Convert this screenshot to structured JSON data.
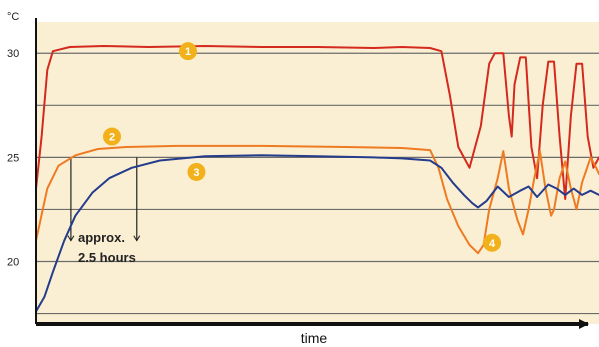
{
  "chart_data": {
    "type": "line",
    "unit": "°C",
    "xlabel": "time",
    "ylabel": "",
    "ylim": [
      17,
      31.5
    ],
    "xlim": [
      0,
      100
    ],
    "yticks": [
      20,
      25,
      30
    ],
    "grid": true,
    "background": "#fbefd3",
    "series": [
      {
        "color": "#d42a1e",
        "marker": "1",
        "points": [
          [
            0,
            23.5
          ],
          [
            1,
            26
          ],
          [
            2,
            29.2
          ],
          [
            3,
            30.1
          ],
          [
            6,
            30.3
          ],
          [
            12,
            30.35
          ],
          [
            20,
            30.3
          ],
          [
            30,
            30.35
          ],
          [
            40,
            30.3
          ],
          [
            50,
            30.3
          ],
          [
            60,
            30.25
          ],
          [
            65,
            30.3
          ],
          [
            70,
            30.25
          ],
          [
            72,
            30.1
          ],
          [
            73.5,
            28
          ],
          [
            75,
            25.5
          ],
          [
            77,
            24.5
          ],
          [
            79,
            26.5
          ],
          [
            80.5,
            29.5
          ],
          [
            81.5,
            30
          ],
          [
            83,
            30
          ],
          [
            84,
            27
          ],
          [
            84.5,
            26
          ],
          [
            85,
            28.5
          ],
          [
            86,
            29.8
          ],
          [
            87,
            29.8
          ],
          [
            88,
            25.5
          ],
          [
            89,
            24
          ],
          [
            90,
            27.5
          ],
          [
            91,
            29.6
          ],
          [
            92,
            29.6
          ],
          [
            93,
            26
          ],
          [
            94,
            23
          ],
          [
            95,
            27
          ],
          [
            96,
            29.5
          ],
          [
            97,
            29.5
          ],
          [
            98,
            26
          ],
          [
            99,
            24.5
          ],
          [
            100,
            25
          ]
        ]
      },
      {
        "color": "#ee7b22",
        "marker": "2",
        "points": [
          [
            0,
            21
          ],
          [
            2,
            23.5
          ],
          [
            4,
            24.6
          ],
          [
            7,
            25.1
          ],
          [
            11,
            25.4
          ],
          [
            16,
            25.5
          ],
          [
            25,
            25.55
          ],
          [
            40,
            25.55
          ],
          [
            55,
            25.5
          ],
          [
            65,
            25.45
          ],
          [
            70,
            25.35
          ],
          [
            71.5,
            24.5
          ],
          [
            73,
            23
          ],
          [
            75,
            21.7
          ],
          [
            77,
            20.8
          ],
          [
            78.5,
            20.4
          ],
          [
            79.5,
            20.8
          ],
          [
            80.5,
            22.5
          ],
          [
            82,
            24
          ],
          [
            83,
            25.3
          ],
          [
            84,
            23.5
          ],
          [
            85.5,
            22
          ],
          [
            86.5,
            21.3
          ],
          [
            87.5,
            22.5
          ],
          [
            88.5,
            24
          ],
          [
            89.5,
            25.3
          ],
          [
            90.5,
            23.5
          ],
          [
            91.5,
            22.2
          ],
          [
            92,
            22.5
          ],
          [
            93,
            24
          ],
          [
            94,
            24.8
          ],
          [
            95,
            23.5
          ],
          [
            96,
            22.5
          ],
          [
            97,
            23.8
          ],
          [
            98.5,
            25
          ],
          [
            99.5,
            24.5
          ],
          [
            100,
            24.2
          ]
        ]
      },
      {
        "color": "#243c8c",
        "marker": "3",
        "points": [
          [
            0,
            17.6
          ],
          [
            1.5,
            18.3
          ],
          [
            3,
            19.5
          ],
          [
            5,
            21
          ],
          [
            7,
            22.2
          ],
          [
            10,
            23.3
          ],
          [
            13,
            24
          ],
          [
            17,
            24.5
          ],
          [
            22,
            24.85
          ],
          [
            30,
            25.05
          ],
          [
            40,
            25.1
          ],
          [
            50,
            25.05
          ],
          [
            60,
            25
          ],
          [
            65,
            24.95
          ],
          [
            70,
            24.85
          ],
          [
            72,
            24.5
          ],
          [
            74,
            23.8
          ],
          [
            76,
            23.2
          ],
          [
            77.5,
            22.8
          ],
          [
            78.5,
            22.6
          ],
          [
            80,
            22.9
          ],
          [
            82,
            23.6
          ],
          [
            84,
            23.1
          ],
          [
            86,
            23.4
          ],
          [
            87.5,
            23.6
          ],
          [
            89,
            23.1
          ],
          [
            91,
            23.7
          ],
          [
            92.5,
            23.5
          ],
          [
            94,
            23.2
          ],
          [
            95.5,
            23.5
          ],
          [
            97,
            23.2
          ],
          [
            98.5,
            23.4
          ],
          [
            100,
            23.2
          ]
        ]
      }
    ],
    "markers": [
      {
        "label": "1",
        "color": "#f2b11a",
        "x": 27,
        "y": 30.1
      },
      {
        "label": "2",
        "color": "#f2b11a",
        "x": 13.5,
        "y": 26.0
      },
      {
        "label": "3",
        "color": "#f2b11a",
        "x": 28.5,
        "y": 24.3
      },
      {
        "label": "4",
        "color": "#f2b11a",
        "x": 81,
        "y": 20.9
      }
    ],
    "annotation": {
      "lines": [
        "approx.",
        "2.5 hours"
      ],
      "bracket_x": [
        6.2,
        17.9
      ]
    }
  }
}
